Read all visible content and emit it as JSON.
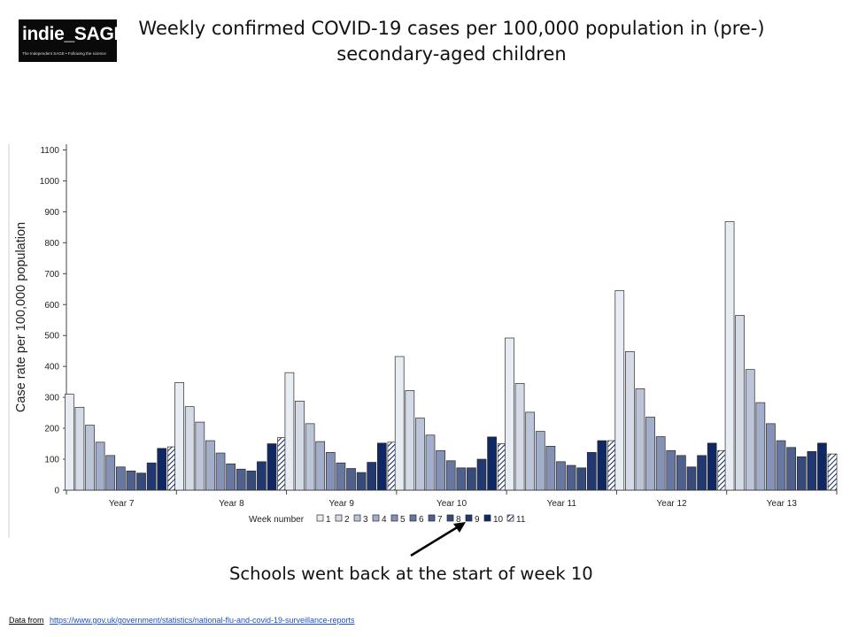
{
  "logo": {
    "name": "indie_SAGE",
    "tagline": "The Independent SAGE • Following the science"
  },
  "title": {
    "line1": "Weekly confirmed COVID-19 cases per 100,000 population in (pre-)",
    "line2": "secondary-aged children"
  },
  "annotation": "Schools went back at the start of week 10",
  "source": {
    "label": "Data from",
    "url": "https://www.gov.uk/government/statistics/national-flu-and-covid-19-surveillance-reports"
  },
  "chart_data": {
    "type": "bar",
    "title": "",
    "ylabel": "Case rate per 100,000 population",
    "xlabel": "",
    "ylim": [
      0,
      1150
    ],
    "yticks": [
      0,
      100,
      200,
      300,
      400,
      500,
      600,
      700,
      800,
      900,
      1000,
      1100
    ],
    "categories": [
      "Year 7",
      "Year 8",
      "Year 9",
      "Year 10",
      "Year 11",
      "Year 12",
      "Year 13"
    ],
    "legend_title": "Week number",
    "legend_position": "bottom",
    "series": [
      {
        "name": "1",
        "color": "#e8ecf3",
        "values": [
          310,
          348,
          380,
          432,
          492,
          645,
          868
        ]
      },
      {
        "name": "2",
        "color": "#d4dae6",
        "values": [
          268,
          270,
          288,
          322,
          345,
          448,
          565
        ]
      },
      {
        "name": "3",
        "color": "#bcc5d8",
        "values": [
          210,
          220,
          215,
          233,
          252,
          328,
          390
        ]
      },
      {
        "name": "4",
        "color": "#a3aecb",
        "values": [
          155,
          160,
          157,
          178,
          190,
          236,
          283
        ]
      },
      {
        "name": "5",
        "color": "#8592b6",
        "values": [
          112,
          120,
          122,
          128,
          142,
          173,
          215
        ]
      },
      {
        "name": "6",
        "color": "#6877a0",
        "values": [
          75,
          85,
          88,
          95,
          92,
          128,
          160
        ]
      },
      {
        "name": "7",
        "color": "#4f608c",
        "values": [
          62,
          68,
          70,
          72,
          80,
          112,
          138
        ]
      },
      {
        "name": "8",
        "color": "#364b7a",
        "values": [
          55,
          62,
          57,
          72,
          72,
          75,
          108
        ]
      },
      {
        "name": "9",
        "color": "#213870",
        "values": [
          88,
          92,
          90,
          100,
          122,
          112,
          125
        ]
      },
      {
        "name": "10",
        "color": "#0f2763",
        "values": [
          135,
          150,
          152,
          172,
          160,
          152,
          152
        ]
      },
      {
        "name": "11",
        "color": "hatch",
        "values": [
          140,
          170,
          155,
          150,
          160,
          128,
          117
        ]
      }
    ]
  }
}
